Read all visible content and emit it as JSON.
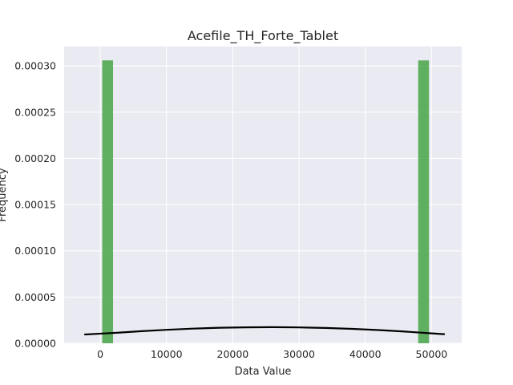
{
  "chart_data": {
    "type": "bar",
    "title": "Acefile_TH_Forte_Tablet",
    "xlabel": "Data Value",
    "ylabel": "Frequency",
    "xlim": [
      -5450,
      54550
    ],
    "ylim": [
      0,
      0.000321
    ],
    "grid": true,
    "x_ticks": [
      0,
      10000,
      20000,
      30000,
      40000,
      50000
    ],
    "x_tick_labels": [
      "0",
      "10000",
      "20000",
      "30000",
      "40000",
      "50000"
    ],
    "y_ticks": [
      0,
      5e-05,
      0.0001,
      0.00015,
      0.0002,
      0.00025,
      0.0003
    ],
    "y_tick_labels": [
      "0.00000",
      "0.00005",
      "0.00010",
      "0.00015",
      "0.00020",
      "0.00025",
      "0.00030"
    ],
    "bars": [
      {
        "x_start": 300,
        "x_end": 1930,
        "value": 0.000306
      },
      {
        "x_start": 47980,
        "x_end": 49610,
        "value": 0.000306
      }
    ],
    "kde_curve": {
      "x": [
        -2300,
        2000,
        6000,
        10000,
        14000,
        18000,
        22000,
        26000,
        30000,
        34000,
        38000,
        42000,
        46000,
        50000,
        51900
      ],
      "y": [
        9.5e-06,
        1.12e-05,
        1.3e-05,
        1.46e-05,
        1.59e-05,
        1.68e-05,
        1.73e-05,
        1.74e-05,
        1.72e-05,
        1.66e-05,
        1.56e-05,
        1.43e-05,
        1.27e-05,
        1.08e-05,
        9.9e-06
      ]
    },
    "colors": {
      "bar_fill": "#4ca64c",
      "curve": "#000000",
      "plot_background": "#eaeaf2",
      "grid": "#ffffff"
    }
  }
}
